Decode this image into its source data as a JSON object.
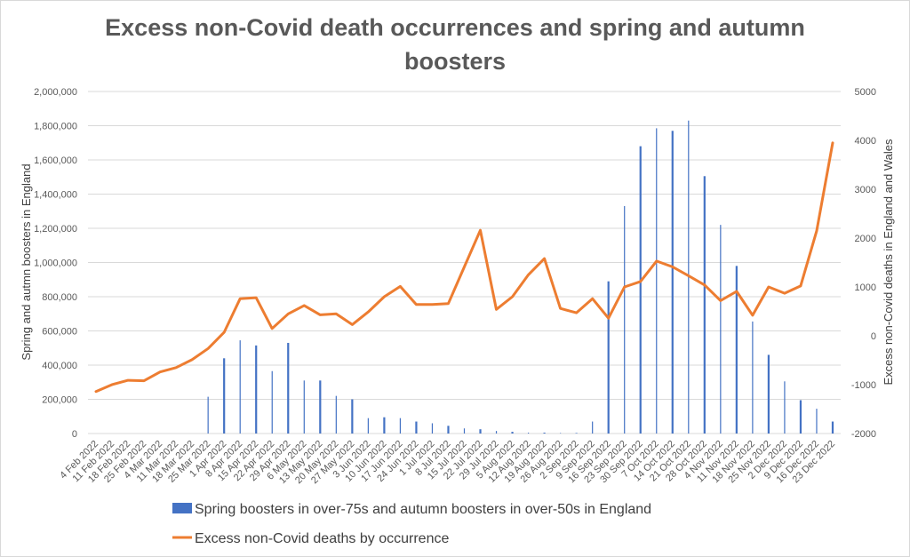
{
  "chart_data": {
    "type": "bar-line-combo",
    "title_lines": [
      "Excess non-Covid death occurrences and spring and autumn",
      "boosters"
    ],
    "categories": [
      "4 Feb 2022",
      "11 Feb 2022",
      "18 Feb 2022",
      "25 Feb 2022",
      "4 Mar 2022",
      "11 Mar 2022",
      "18 Mar 2022",
      "25 Mar 2022",
      "1 Apr 2022",
      "8 Apr 2022",
      "15 Apr 2022",
      "22 Apr 2022",
      "29 Apr 2022",
      "6 May 2022",
      "13 May 2022",
      "20 May 2022",
      "27 May 2022",
      "3 Jun 2022",
      "10 Jun 2022",
      "17 Jun 2022",
      "24 Jun 2022",
      "1 Jul 2022",
      "8 Jul 2022",
      "15 Jul 2022",
      "22 Jul 2022",
      "29 Jul 2022",
      "5 Aug 2022",
      "12 Aug 2022",
      "19 Aug 2022",
      "26 Aug 2022",
      "2 Sep 2022",
      "9 Sep 2022",
      "16 Sep 2022",
      "23 Sep 2022",
      "30 Sep 2022",
      "7 Oct 2022",
      "14 Oct 2022",
      "21 Oct 2022",
      "28 Oct 2022",
      "4 Nov 2022",
      "11 Nov 2022",
      "18 Nov 2022",
      "25 Nov 2022",
      "2 Dec 2022",
      "9 Dec 2022",
      "16 Dec 2022",
      "23 Dec 2022"
    ],
    "y_left": {
      "label": "Spring and autmn boosters in England",
      "range": [
        0,
        2000000
      ],
      "ticks": [
        "0",
        "200,000",
        "400,000",
        "600,000",
        "800,000",
        "1,000,000",
        "1,200,000",
        "1,400,000",
        "1,600,000",
        "1,800,000",
        "2,000,000"
      ]
    },
    "y_right": {
      "label": "Excess non-Covid deaths in England and Wales",
      "range": [
        -2000,
        5000
      ],
      "ticks": [
        "-2000",
        "-1000",
        "0",
        "1000",
        "2000",
        "3000",
        "4000",
        "5000"
      ]
    },
    "gridlines": true,
    "legend_position": "bottom",
    "series": [
      {
        "name": "Spring boosters in over-75s and autumn boosters in over-50s in England",
        "type": "bar",
        "axis": "left",
        "color": "#4472c4",
        "values": [
          0,
          0,
          0,
          0,
          0,
          0,
          0,
          215000,
          440000,
          545000,
          515000,
          365000,
          530000,
          310000,
          310000,
          220000,
          200000,
          90000,
          95000,
          90000,
          70000,
          60000,
          45000,
          30000,
          25000,
          15000,
          10000,
          5000,
          5000,
          3000,
          3000,
          70000,
          890000,
          1330000,
          1680000,
          1785000,
          1770000,
          1830000,
          1505000,
          1220000,
          980000,
          655000,
          460000,
          305000,
          195000,
          145000,
          70000
        ]
      },
      {
        "name": "Excess non-Covid deaths by occurrence",
        "type": "line",
        "axis": "right",
        "color": "#ed7d31",
        "values": [
          -1140,
          -1000,
          -910,
          -920,
          -740,
          -650,
          -490,
          -260,
          70,
          760,
          780,
          150,
          450,
          620,
          430,
          450,
          230,
          490,
          800,
          1010,
          640,
          640,
          660,
          1410,
          2160,
          540,
          800,
          1250,
          1580,
          560,
          470,
          760,
          360,
          1000,
          1110,
          1530,
          1410,
          1230,
          1040,
          720,
          910,
          420,
          1000,
          870,
          1020,
          2150,
          3950
        ]
      }
    ]
  }
}
